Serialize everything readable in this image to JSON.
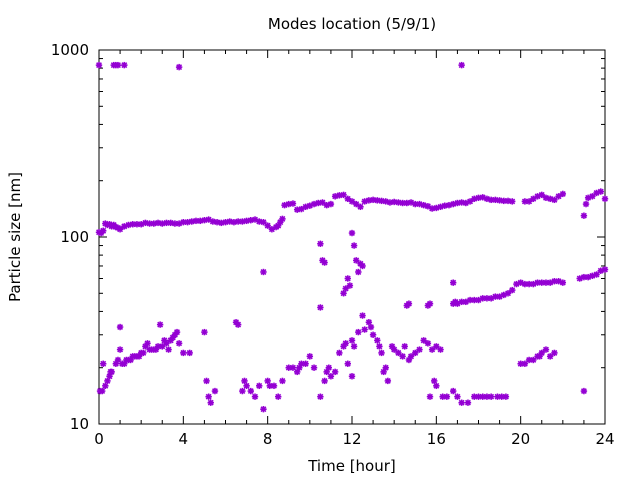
{
  "chart_data": {
    "type": "scatter",
    "title": "Modes location (5/9/1)",
    "xlabel": "Time [hour]",
    "ylabel": "Particle size [nm]",
    "xlim": [
      0,
      24
    ],
    "ylim": [
      10,
      1000
    ],
    "yscale": "log",
    "x_ticks": [
      0,
      4,
      8,
      12,
      16,
      20,
      24
    ],
    "y_ticks": [
      10,
      100,
      1000
    ],
    "marker": "asterisk",
    "color": "#9400d3",
    "grid": false,
    "points": [
      [
        0.05,
        15
      ],
      [
        0.15,
        15
      ],
      [
        0.2,
        21
      ],
      [
        0.3,
        16
      ],
      [
        0.4,
        17
      ],
      [
        0.5,
        18
      ],
      [
        0.55,
        19
      ],
      [
        0.6,
        19
      ],
      [
        0.8,
        21
      ],
      [
        0.9,
        22
      ],
      [
        1.0,
        33
      ],
      [
        1.0,
        25
      ],
      [
        1.1,
        21
      ],
      [
        1.2,
        21
      ],
      [
        1.3,
        22
      ],
      [
        1.4,
        22
      ],
      [
        1.5,
        22
      ],
      [
        1.6,
        23
      ],
      [
        1.7,
        23
      ],
      [
        1.8,
        23
      ],
      [
        1.9,
        23
      ],
      [
        2.0,
        24
      ],
      [
        2.1,
        24
      ],
      [
        2.2,
        26
      ],
      [
        2.3,
        27
      ],
      [
        2.4,
        25
      ],
      [
        2.5,
        25
      ],
      [
        2.6,
        25
      ],
      [
        2.7,
        25
      ],
      [
        2.8,
        26
      ],
      [
        2.9,
        34
      ],
      [
        3.0,
        26
      ],
      [
        3.1,
        28
      ],
      [
        3.2,
        27
      ],
      [
        3.3,
        25
      ],
      [
        3.4,
        28
      ],
      [
        3.5,
        29
      ],
      [
        3.6,
        30
      ],
      [
        3.7,
        31
      ],
      [
        3.8,
        27
      ],
      [
        4.0,
        24
      ],
      [
        4.3,
        24
      ],
      [
        5.0,
        31
      ],
      [
        5.1,
        17
      ],
      [
        5.2,
        14
      ],
      [
        5.3,
        13
      ],
      [
        5.5,
        15
      ],
      [
        6.5,
        35
      ],
      [
        6.6,
        34
      ],
      [
        6.8,
        15
      ],
      [
        6.9,
        17
      ],
      [
        7.0,
        16
      ],
      [
        7.2,
        15
      ],
      [
        7.4,
        14
      ],
      [
        7.6,
        16
      ],
      [
        7.8,
        12
      ],
      [
        8.0,
        17
      ],
      [
        8.1,
        16
      ],
      [
        8.3,
        16
      ],
      [
        8.5,
        14
      ],
      [
        8.7,
        17
      ],
      [
        9.0,
        20
      ],
      [
        9.2,
        20
      ],
      [
        9.4,
        19
      ],
      [
        9.5,
        20
      ],
      [
        9.6,
        21
      ],
      [
        9.8,
        21
      ],
      [
        10.0,
        23
      ],
      [
        10.2,
        20
      ],
      [
        10.5,
        14
      ],
      [
        10.7,
        17
      ],
      [
        10.8,
        19
      ],
      [
        10.9,
        20
      ],
      [
        11.0,
        18
      ],
      [
        11.2,
        19
      ],
      [
        11.4,
        24
      ],
      [
        11.6,
        26
      ],
      [
        11.7,
        27
      ],
      [
        11.8,
        21
      ],
      [
        12.0,
        28
      ],
      [
        12.0,
        18
      ],
      [
        12.1,
        26
      ],
      [
        12.3,
        31
      ],
      [
        12.5,
        38
      ],
      [
        12.6,
        32
      ],
      [
        12.8,
        35
      ],
      [
        12.9,
        33
      ],
      [
        13.0,
        30
      ],
      [
        13.2,
        28
      ],
      [
        13.3,
        26
      ],
      [
        13.4,
        24
      ],
      [
        13.5,
        19
      ],
      [
        13.6,
        20
      ],
      [
        13.7,
        17
      ],
      [
        13.9,
        26
      ],
      [
        14.0,
        25
      ],
      [
        14.2,
        24
      ],
      [
        14.4,
        23
      ],
      [
        14.5,
        26
      ],
      [
        14.7,
        22
      ],
      [
        14.8,
        23
      ],
      [
        15.0,
        24
      ],
      [
        15.2,
        25
      ],
      [
        15.4,
        28
      ],
      [
        15.6,
        27
      ],
      [
        15.8,
        25
      ],
      [
        16.0,
        26
      ],
      [
        16.2,
        25
      ],
      [
        15.9,
        17
      ],
      [
        16.0,
        16
      ],
      [
        15.7,
        14
      ],
      [
        16.3,
        14
      ],
      [
        16.5,
        14
      ],
      [
        16.8,
        15
      ],
      [
        17.0,
        14
      ],
      [
        17.2,
        13
      ],
      [
        17.5,
        13
      ],
      [
        17.8,
        14
      ],
      [
        18.0,
        14
      ],
      [
        18.2,
        14
      ],
      [
        18.4,
        14
      ],
      [
        18.6,
        14
      ],
      [
        18.9,
        14
      ],
      [
        19.1,
        14
      ],
      [
        19.3,
        14
      ],
      [
        20.0,
        21
      ],
      [
        20.2,
        21
      ],
      [
        20.4,
        22
      ],
      [
        20.6,
        22
      ],
      [
        20.8,
        23
      ],
      [
        20.9,
        23
      ],
      [
        21.0,
        24
      ],
      [
        21.2,
        25
      ],
      [
        21.4,
        23
      ],
      [
        21.6,
        24
      ],
      [
        23.0,
        15
      ],
      [
        0.0,
        106
      ],
      [
        0.1,
        105
      ],
      [
        0.2,
        108
      ],
      [
        0.3,
        118
      ],
      [
        0.4,
        116
      ],
      [
        0.5,
        117
      ],
      [
        0.6,
        114
      ],
      [
        0.7,
        116
      ],
      [
        0.8,
        113
      ],
      [
        0.9,
        112
      ],
      [
        1.0,
        110
      ],
      [
        1.2,
        114
      ],
      [
        1.4,
        116
      ],
      [
        1.6,
        117
      ],
      [
        1.8,
        117
      ],
      [
        2.0,
        117
      ],
      [
        2.2,
        119
      ],
      [
        2.4,
        118
      ],
      [
        2.6,
        118
      ],
      [
        2.8,
        119
      ],
      [
        3.0,
        118
      ],
      [
        3.2,
        119
      ],
      [
        3.4,
        119
      ],
      [
        3.6,
        118
      ],
      [
        3.8,
        118
      ],
      [
        4.0,
        120
      ],
      [
        4.2,
        120
      ],
      [
        4.4,
        121
      ],
      [
        4.6,
        122
      ],
      [
        4.8,
        122
      ],
      [
        5.0,
        123
      ],
      [
        5.2,
        124
      ],
      [
        5.4,
        121
      ],
      [
        5.6,
        120
      ],
      [
        5.8,
        119
      ],
      [
        6.0,
        120
      ],
      [
        6.2,
        121
      ],
      [
        6.4,
        120
      ],
      [
        6.6,
        121
      ],
      [
        6.8,
        121
      ],
      [
        7.0,
        122
      ],
      [
        7.2,
        123
      ],
      [
        7.4,
        124
      ],
      [
        7.6,
        121
      ],
      [
        7.8,
        120
      ],
      [
        8.0,
        115
      ],
      [
        8.2,
        110
      ],
      [
        8.4,
        113
      ],
      [
        8.5,
        115
      ],
      [
        8.6,
        120
      ],
      [
        8.7,
        125
      ],
      [
        8.8,
        148
      ],
      [
        9.0,
        150
      ],
      [
        9.2,
        151
      ],
      [
        9.4,
        140
      ],
      [
        9.6,
        141
      ],
      [
        9.8,
        145
      ],
      [
        10.0,
        147
      ],
      [
        10.2,
        150
      ],
      [
        10.4,
        152
      ],
      [
        10.6,
        153
      ],
      [
        10.8,
        148
      ],
      [
        11.0,
        150
      ],
      [
        11.2,
        165
      ],
      [
        11.4,
        167
      ],
      [
        11.6,
        168
      ],
      [
        11.8,
        160
      ],
      [
        12.0,
        155
      ],
      [
        12.2,
        150
      ],
      [
        12.4,
        145
      ],
      [
        12.6,
        155
      ],
      [
        12.8,
        157
      ],
      [
        13.0,
        158
      ],
      [
        13.2,
        157
      ],
      [
        13.4,
        156
      ],
      [
        13.6,
        155
      ],
      [
        13.8,
        153
      ],
      [
        14.0,
        154
      ],
      [
        14.2,
        153
      ],
      [
        14.4,
        152
      ],
      [
        14.6,
        152
      ],
      [
        14.8,
        153
      ],
      [
        15.0,
        150
      ],
      [
        15.2,
        150
      ],
      [
        15.4,
        148
      ],
      [
        15.6,
        146
      ],
      [
        15.8,
        142
      ],
      [
        16.0,
        143
      ],
      [
        16.2,
        145
      ],
      [
        16.4,
        147
      ],
      [
        16.6,
        148
      ],
      [
        16.8,
        150
      ],
      [
        17.0,
        152
      ],
      [
        17.2,
        153
      ],
      [
        17.4,
        152
      ],
      [
        17.6,
        155
      ],
      [
        17.8,
        160
      ],
      [
        18.0,
        162
      ],
      [
        18.2,
        163
      ],
      [
        18.4,
        160
      ],
      [
        18.6,
        158
      ],
      [
        18.8,
        158
      ],
      [
        19.0,
        157
      ],
      [
        19.2,
        156
      ],
      [
        19.4,
        156
      ],
      [
        19.6,
        155
      ],
      [
        20.2,
        155
      ],
      [
        20.4,
        155
      ],
      [
        20.6,
        160
      ],
      [
        20.8,
        165
      ],
      [
        21.0,
        168
      ],
      [
        21.2,
        162
      ],
      [
        21.4,
        160
      ],
      [
        21.6,
        158
      ],
      [
        21.8,
        165
      ],
      [
        22.0,
        170
      ],
      [
        23.0,
        130
      ],
      [
        23.1,
        150
      ],
      [
        23.2,
        162
      ],
      [
        23.4,
        165
      ],
      [
        23.6,
        172
      ],
      [
        23.8,
        175
      ],
      [
        24.0,
        160
      ],
      [
        10.5,
        92
      ],
      [
        10.6,
        75
      ],
      [
        10.7,
        73
      ],
      [
        10.5,
        42
      ],
      [
        11.6,
        50
      ],
      [
        11.8,
        60
      ],
      [
        11.9,
        55
      ],
      [
        12.0,
        105
      ],
      [
        12.1,
        90
      ],
      [
        12.2,
        75
      ],
      [
        12.3,
        65
      ],
      [
        12.4,
        72
      ],
      [
        12.5,
        70
      ],
      [
        7.8,
        65
      ],
      [
        11.7,
        53
      ],
      [
        14.6,
        43
      ],
      [
        14.7,
        44
      ],
      [
        15.6,
        43
      ],
      [
        15.7,
        44
      ],
      [
        16.8,
        44
      ],
      [
        16.9,
        45
      ],
      [
        17.0,
        44
      ],
      [
        17.2,
        45
      ],
      [
        17.4,
        45
      ],
      [
        17.6,
        46
      ],
      [
        17.8,
        46
      ],
      [
        18.0,
        46
      ],
      [
        18.2,
        47
      ],
      [
        18.4,
        47
      ],
      [
        18.6,
        47
      ],
      [
        18.8,
        48
      ],
      [
        19.0,
        48
      ],
      [
        19.2,
        49
      ],
      [
        19.4,
        50
      ],
      [
        19.6,
        52
      ],
      [
        19.8,
        56
      ],
      [
        20.0,
        57
      ],
      [
        20.2,
        56
      ],
      [
        20.4,
        56
      ],
      [
        20.6,
        56
      ],
      [
        20.8,
        57
      ],
      [
        21.0,
        57
      ],
      [
        21.2,
        57
      ],
      [
        21.4,
        57
      ],
      [
        21.6,
        58
      ],
      [
        21.8,
        58
      ],
      [
        22.0,
        57
      ],
      [
        16.8,
        57
      ],
      [
        22.8,
        60
      ],
      [
        23.0,
        61
      ],
      [
        23.2,
        61
      ],
      [
        23.4,
        62
      ],
      [
        23.6,
        63
      ],
      [
        23.8,
        66
      ],
      [
        24.0,
        67
      ],
      [
        0.0,
        830
      ],
      [
        0.7,
        830
      ],
      [
        0.8,
        830
      ],
      [
        0.9,
        830
      ],
      [
        1.2,
        830
      ],
      [
        3.8,
        810
      ],
      [
        17.2,
        830
      ]
    ]
  }
}
